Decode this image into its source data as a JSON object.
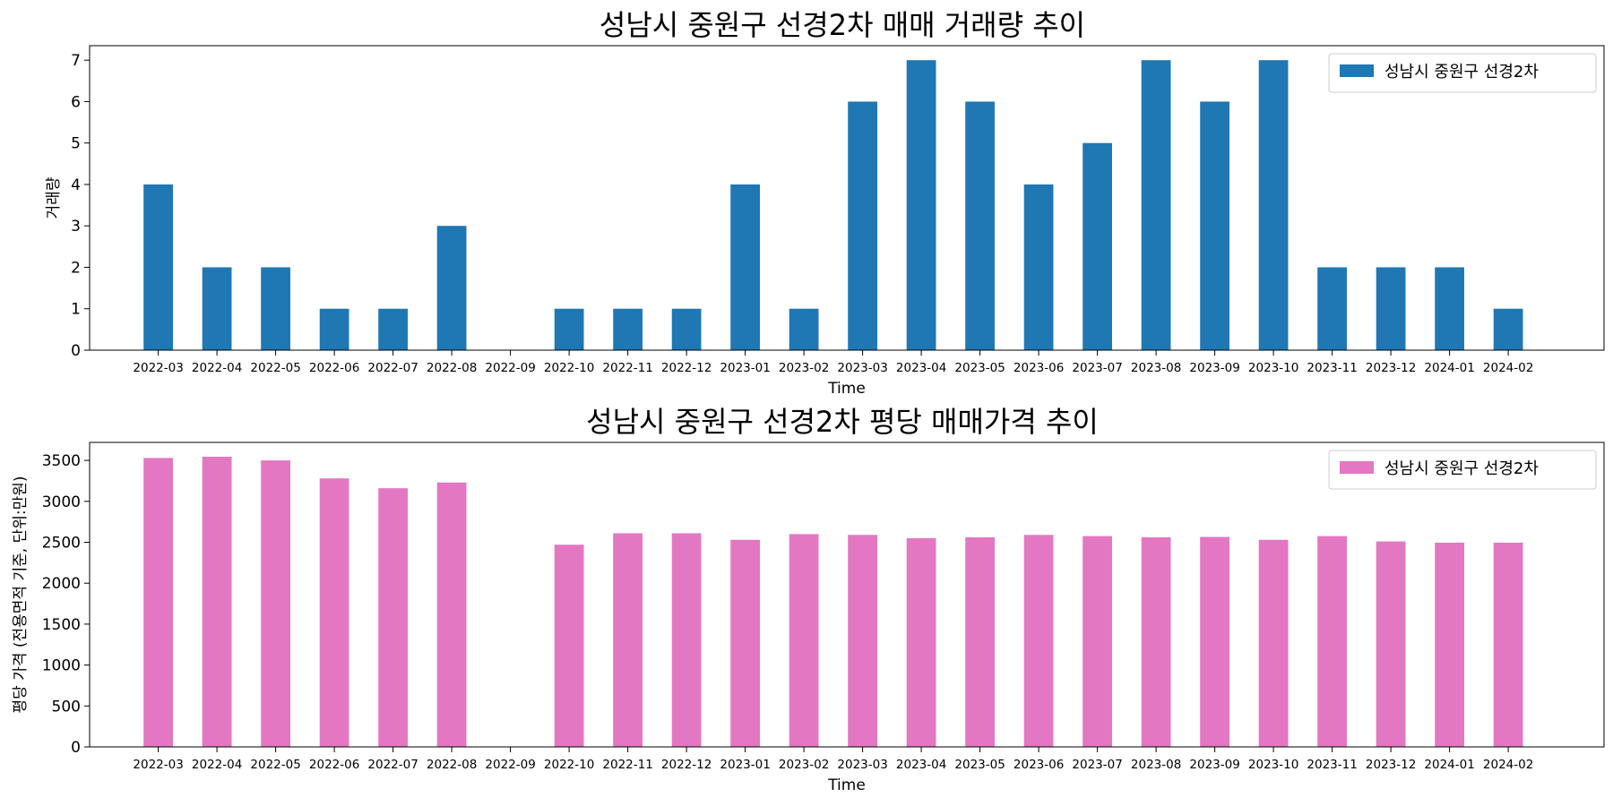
{
  "chart_data": [
    {
      "type": "bar",
      "title": "성남시 중원구 선경2차 매매 거래량 추이",
      "xlabel": "Time",
      "ylabel": "거래량",
      "categories": [
        "2022-03",
        "2022-04",
        "2022-05",
        "2022-06",
        "2022-07",
        "2022-08",
        "2022-09",
        "2022-10",
        "2022-11",
        "2022-12",
        "2023-01",
        "2023-02",
        "2023-03",
        "2023-04",
        "2023-05",
        "2023-06",
        "2023-07",
        "2023-08",
        "2023-09",
        "2023-10",
        "2023-11",
        "2023-12",
        "2024-01",
        "2024-02"
      ],
      "series": [
        {
          "name": "성남시 중원구 선경2차",
          "color": "#1f77b4",
          "values": [
            4,
            2,
            2,
            1,
            1,
            3,
            0,
            1,
            1,
            1,
            4,
            1,
            6,
            7,
            6,
            4,
            5,
            7,
            6,
            7,
            2,
            2,
            2,
            1
          ]
        }
      ],
      "ylim": [
        0,
        7.35
      ],
      "yticks": [
        0,
        1,
        2,
        3,
        4,
        5,
        6,
        7
      ],
      "legend": "top-right",
      "grid": false
    },
    {
      "type": "bar",
      "title": "성남시 중원구 선경2차 평당 매매가격 추이",
      "xlabel": "Time",
      "ylabel": "평당 가격 (전용면적 기준, 단위:만원)",
      "categories": [
        "2022-03",
        "2022-04",
        "2022-05",
        "2022-06",
        "2022-07",
        "2022-08",
        "2022-09",
        "2022-10",
        "2022-11",
        "2022-12",
        "2023-01",
        "2023-02",
        "2023-03",
        "2023-04",
        "2023-05",
        "2023-06",
        "2023-07",
        "2023-08",
        "2023-09",
        "2023-10",
        "2023-11",
        "2023-12",
        "2024-01",
        "2024-02"
      ],
      "series": [
        {
          "name": "성남시 중원구 선경2차",
          "color": "#e377c2",
          "values": [
            3530,
            3545,
            3500,
            3280,
            3160,
            3230,
            null,
            2470,
            2610,
            2610,
            2530,
            2600,
            2590,
            2550,
            2560,
            2590,
            2575,
            2560,
            2565,
            2530,
            2575,
            2510,
            2495,
            2495
          ]
        }
      ],
      "ylim": [
        0,
        3720
      ],
      "yticks": [
        0,
        500,
        1000,
        1500,
        2000,
        2500,
        3000,
        3500
      ],
      "legend": "top-right",
      "grid": false
    }
  ]
}
